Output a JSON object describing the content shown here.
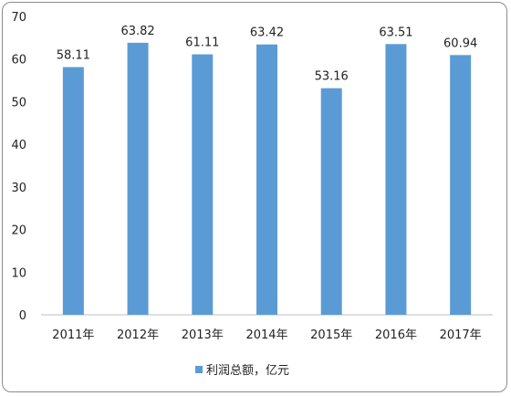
{
  "chart_data": {
    "type": "bar",
    "categories": [
      "2011年",
      "2012年",
      "2013年",
      "2014年",
      "2015年",
      "2016年",
      "2017年"
    ],
    "series": [
      {
        "name": "利润总额，亿元",
        "values": [
          58.11,
          63.82,
          61.11,
          63.42,
          53.16,
          63.51,
          60.94
        ]
      }
    ],
    "data_labels": [
      "58.11",
      "63.82",
      "61.11",
      "63.42",
      "53.16",
      "63.51",
      "60.94"
    ],
    "y_ticks": [
      "0",
      "10",
      "20",
      "30",
      "40",
      "50",
      "60",
      "70"
    ],
    "ylim": [
      0,
      70
    ],
    "grid": false,
    "legend_position": "bottom",
    "colors": {
      "bar": "#5b9bd5",
      "axis": "#bfbfbf",
      "text": "#222222"
    }
  }
}
